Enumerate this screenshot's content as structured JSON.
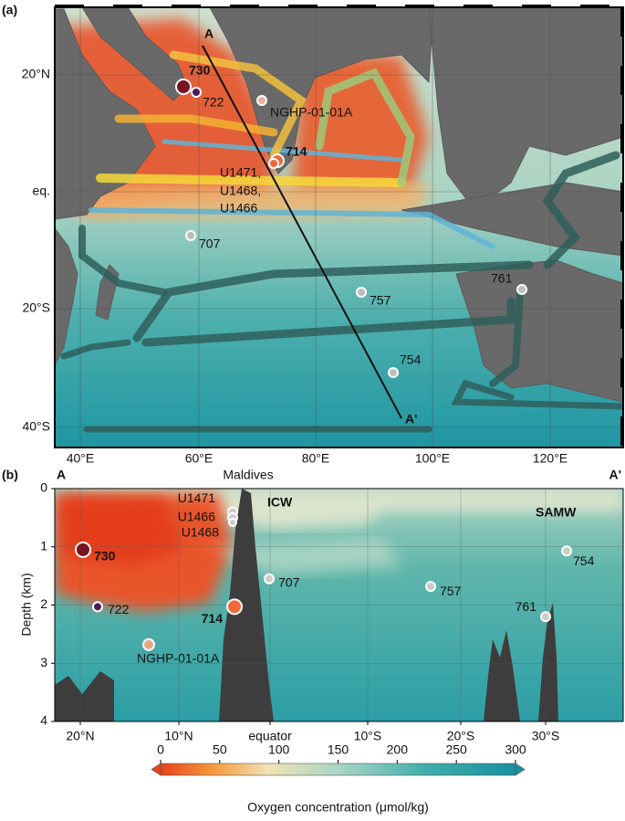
{
  "panel_a": {
    "label": "(a)",
    "section_start": "A",
    "section_end": "A'",
    "lat_labels": [
      "20°N",
      "eq.",
      "20°S",
      "40°S"
    ],
    "lon_labels": [
      "40°E",
      "60°E",
      "80°E",
      "100°E",
      "120°E"
    ],
    "sites": [
      "730",
      "722",
      "NGHP-01-01A",
      "714",
      "707",
      "757",
      "761",
      "754"
    ],
    "site_group": [
      "U1471,",
      "U1468,",
      "U1466"
    ]
  },
  "panel_b": {
    "label": "(b)",
    "section_start": "A",
    "section_end": "A'",
    "annotations": [
      "Maldives",
      "ICW",
      "SAMW"
    ],
    "y_label": "Depth (km)",
    "ylim": [
      0,
      4
    ],
    "yticks": [
      0,
      1,
      2,
      3,
      4
    ],
    "x_labels": [
      "20°N",
      "10°N",
      "equator",
      "10°S",
      "20°S",
      "30°S"
    ],
    "sites": [
      {
        "label": "730",
        "depth": 1.05
      },
      {
        "label": "722",
        "depth": 2.03
      },
      {
        "label": "NGHP-01-01A",
        "depth": 2.68
      },
      {
        "label": "714",
        "depth": 2.03
      },
      {
        "label": "U1471",
        "depth": 0.4
      },
      {
        "label": "U1466",
        "depth": 0.5
      },
      {
        "label": "U1468",
        "depth": 0.58
      },
      {
        "label": "707",
        "depth": 1.55
      },
      {
        "label": "757",
        "depth": 1.68
      },
      {
        "label": "761",
        "depth": 2.2
      },
      {
        "label": "754",
        "depth": 1.07
      }
    ]
  },
  "colorbar": {
    "label": "Oxygen concentration (μmol/kg)",
    "lim": [
      0,
      300
    ],
    "ticks": [
      0,
      50,
      100,
      150,
      200,
      250,
      300
    ]
  }
}
